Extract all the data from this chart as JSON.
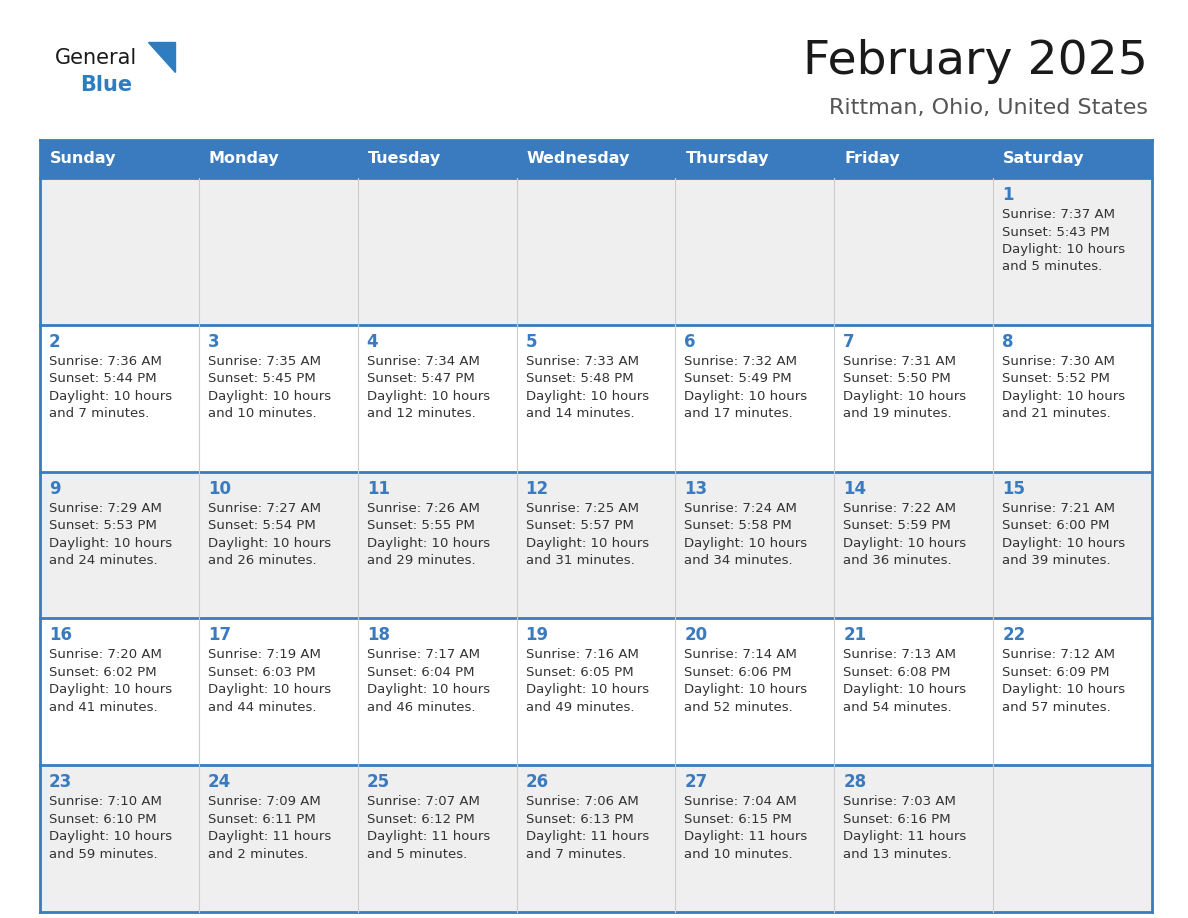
{
  "title": "February 2025",
  "subtitle": "Rittman, Ohio, United States",
  "days_of_week": [
    "Sunday",
    "Monday",
    "Tuesday",
    "Wednesday",
    "Thursday",
    "Friday",
    "Saturday"
  ],
  "header_bg": "#3a7bbf",
  "header_text": "#FFFFFF",
  "row_bg_even": "#EFEFEF",
  "row_bg_odd": "#FFFFFF",
  "cell_border": "#3a7bbf",
  "day_num_color": "#3a7bbf",
  "text_color": "#333333",
  "calendar_data": [
    [
      null,
      null,
      null,
      null,
      null,
      null,
      {
        "day": "1",
        "sunrise": "7:37 AM",
        "sunset": "5:43 PM",
        "daylight1": "Daylight: 10 hours",
        "daylight2": "and 5 minutes."
      }
    ],
    [
      {
        "day": "2",
        "sunrise": "7:36 AM",
        "sunset": "5:44 PM",
        "daylight1": "Daylight: 10 hours",
        "daylight2": "and 7 minutes."
      },
      {
        "day": "3",
        "sunrise": "7:35 AM",
        "sunset": "5:45 PM",
        "daylight1": "Daylight: 10 hours",
        "daylight2": "and 10 minutes."
      },
      {
        "day": "4",
        "sunrise": "7:34 AM",
        "sunset": "5:47 PM",
        "daylight1": "Daylight: 10 hours",
        "daylight2": "and 12 minutes."
      },
      {
        "day": "5",
        "sunrise": "7:33 AM",
        "sunset": "5:48 PM",
        "daylight1": "Daylight: 10 hours",
        "daylight2": "and 14 minutes."
      },
      {
        "day": "6",
        "sunrise": "7:32 AM",
        "sunset": "5:49 PM",
        "daylight1": "Daylight: 10 hours",
        "daylight2": "and 17 minutes."
      },
      {
        "day": "7",
        "sunrise": "7:31 AM",
        "sunset": "5:50 PM",
        "daylight1": "Daylight: 10 hours",
        "daylight2": "and 19 minutes."
      },
      {
        "day": "8",
        "sunrise": "7:30 AM",
        "sunset": "5:52 PM",
        "daylight1": "Daylight: 10 hours",
        "daylight2": "and 21 minutes."
      }
    ],
    [
      {
        "day": "9",
        "sunrise": "7:29 AM",
        "sunset": "5:53 PM",
        "daylight1": "Daylight: 10 hours",
        "daylight2": "and 24 minutes."
      },
      {
        "day": "10",
        "sunrise": "7:27 AM",
        "sunset": "5:54 PM",
        "daylight1": "Daylight: 10 hours",
        "daylight2": "and 26 minutes."
      },
      {
        "day": "11",
        "sunrise": "7:26 AM",
        "sunset": "5:55 PM",
        "daylight1": "Daylight: 10 hours",
        "daylight2": "and 29 minutes."
      },
      {
        "day": "12",
        "sunrise": "7:25 AM",
        "sunset": "5:57 PM",
        "daylight1": "Daylight: 10 hours",
        "daylight2": "and 31 minutes."
      },
      {
        "day": "13",
        "sunrise": "7:24 AM",
        "sunset": "5:58 PM",
        "daylight1": "Daylight: 10 hours",
        "daylight2": "and 34 minutes."
      },
      {
        "day": "14",
        "sunrise": "7:22 AM",
        "sunset": "5:59 PM",
        "daylight1": "Daylight: 10 hours",
        "daylight2": "and 36 minutes."
      },
      {
        "day": "15",
        "sunrise": "7:21 AM",
        "sunset": "6:00 PM",
        "daylight1": "Daylight: 10 hours",
        "daylight2": "and 39 minutes."
      }
    ],
    [
      {
        "day": "16",
        "sunrise": "7:20 AM",
        "sunset": "6:02 PM",
        "daylight1": "Daylight: 10 hours",
        "daylight2": "and 41 minutes."
      },
      {
        "day": "17",
        "sunrise": "7:19 AM",
        "sunset": "6:03 PM",
        "daylight1": "Daylight: 10 hours",
        "daylight2": "and 44 minutes."
      },
      {
        "day": "18",
        "sunrise": "7:17 AM",
        "sunset": "6:04 PM",
        "daylight1": "Daylight: 10 hours",
        "daylight2": "and 46 minutes."
      },
      {
        "day": "19",
        "sunrise": "7:16 AM",
        "sunset": "6:05 PM",
        "daylight1": "Daylight: 10 hours",
        "daylight2": "and 49 minutes."
      },
      {
        "day": "20",
        "sunrise": "7:14 AM",
        "sunset": "6:06 PM",
        "daylight1": "Daylight: 10 hours",
        "daylight2": "and 52 minutes."
      },
      {
        "day": "21",
        "sunrise": "7:13 AM",
        "sunset": "6:08 PM",
        "daylight1": "Daylight: 10 hours",
        "daylight2": "and 54 minutes."
      },
      {
        "day": "22",
        "sunrise": "7:12 AM",
        "sunset": "6:09 PM",
        "daylight1": "Daylight: 10 hours",
        "daylight2": "and 57 minutes."
      }
    ],
    [
      {
        "day": "23",
        "sunrise": "7:10 AM",
        "sunset": "6:10 PM",
        "daylight1": "Daylight: 10 hours",
        "daylight2": "and 59 minutes."
      },
      {
        "day": "24",
        "sunrise": "7:09 AM",
        "sunset": "6:11 PM",
        "daylight1": "Daylight: 11 hours",
        "daylight2": "and 2 minutes."
      },
      {
        "day": "25",
        "sunrise": "7:07 AM",
        "sunset": "6:12 PM",
        "daylight1": "Daylight: 11 hours",
        "daylight2": "and 5 minutes."
      },
      {
        "day": "26",
        "sunrise": "7:06 AM",
        "sunset": "6:13 PM",
        "daylight1": "Daylight: 11 hours",
        "daylight2": "and 7 minutes."
      },
      {
        "day": "27",
        "sunrise": "7:04 AM",
        "sunset": "6:15 PM",
        "daylight1": "Daylight: 11 hours",
        "daylight2": "and 10 minutes."
      },
      {
        "day": "28",
        "sunrise": "7:03 AM",
        "sunset": "6:16 PM",
        "daylight1": "Daylight: 11 hours",
        "daylight2": "and 13 minutes."
      },
      null
    ]
  ],
  "logo_color_general": "#1a1a1a",
  "logo_color_blue": "#2E7DC0"
}
